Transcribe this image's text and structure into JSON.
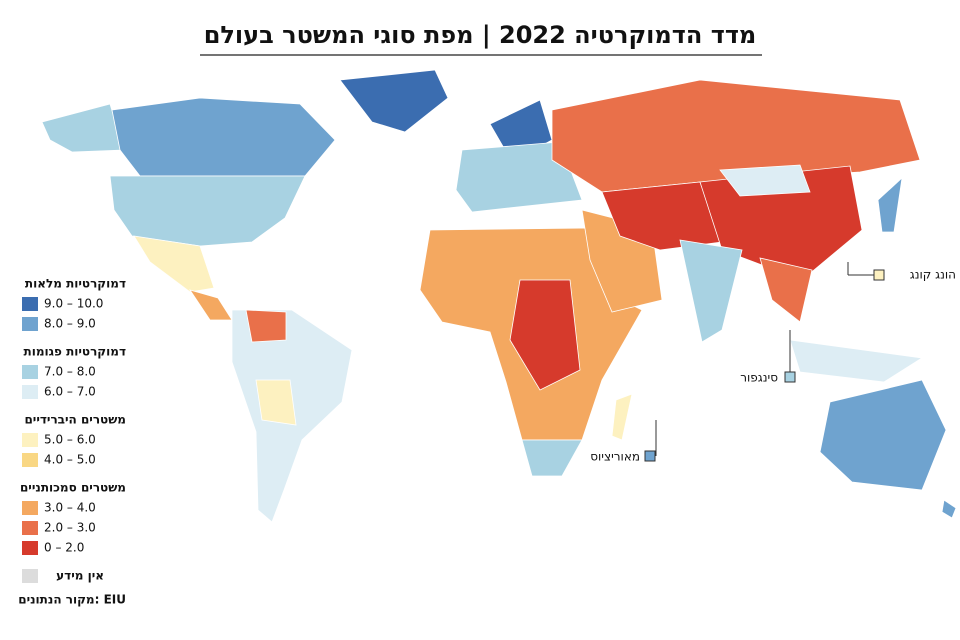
{
  "title": "מדד הדמוקרטיה 2022 | מפת סוגי המשטר בעולם",
  "legend": {
    "groups": [
      {
        "title": "דמוקרטיות מלאות",
        "items": [
          {
            "label": "9.0 – 10.0",
            "color": "#3b6db0"
          },
          {
            "label": "8.0 – 9.0",
            "color": "#6fa3cf"
          }
        ]
      },
      {
        "title": "דמוקרטיות פגומות",
        "items": [
          {
            "label": "7.0 – 8.0",
            "color": "#a8d2e2"
          },
          {
            "label": "6.0 – 7.0",
            "color": "#ddedf4"
          }
        ]
      },
      {
        "title": "משטרים היברידיים",
        "items": [
          {
            "label": "5.0 – 6.0",
            "color": "#fdf1c0"
          },
          {
            "label": "4.0 – 5.0",
            "color": "#f9d784"
          }
        ]
      },
      {
        "title": "משטרים סמכותניים",
        "items": [
          {
            "label": "3.0 – 4.0",
            "color": "#f4a860"
          },
          {
            "label": "2.0 – 3.0",
            "color": "#e9704a"
          },
          {
            "label": "0 – 2.0",
            "color": "#d63a2c"
          }
        ]
      }
    ],
    "no_data": {
      "label": "אין מידע",
      "color": "#dcdcdc"
    }
  },
  "callouts": [
    "הונג קונג",
    "סינגפור",
    "מאוריציוס"
  ],
  "source": "מקור הנתונים: EIU"
}
